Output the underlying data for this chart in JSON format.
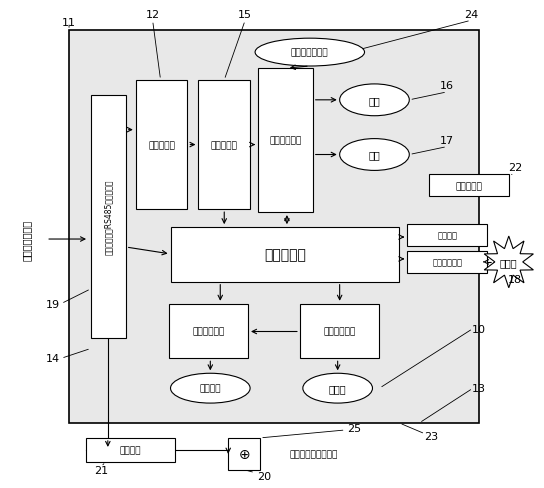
{
  "side_text": "至楼道预警分机",
  "楼层踩踏指示灯": "楼层踩蹏指示灯",
  "单片机系统": "单片机系统",
  "视频解码器": "视频解码器",
  "视频分析器": "视频分析器",
  "电话报警模块": "电话报警模块",
  "警笛": "警笛",
  "警灯": "警灯",
  "手机客户端": "手机客户端",
  "编程接口": "编程接口",
  "网络通信模块": "网络通信模块",
  "互联网": "互联网",
  "音频放大电路": "音频放大电路",
  "话筒放大电路": "话筒放大电路",
  "监听喇叭": "监听喇叭",
  "喊话器": "喚话器",
  "监视屏幕": "监视屏幕",
  "突发按钮": "突发按鈕（地震等）",
  "接口电路": "接口电路（含RS485通讯模块）"
}
